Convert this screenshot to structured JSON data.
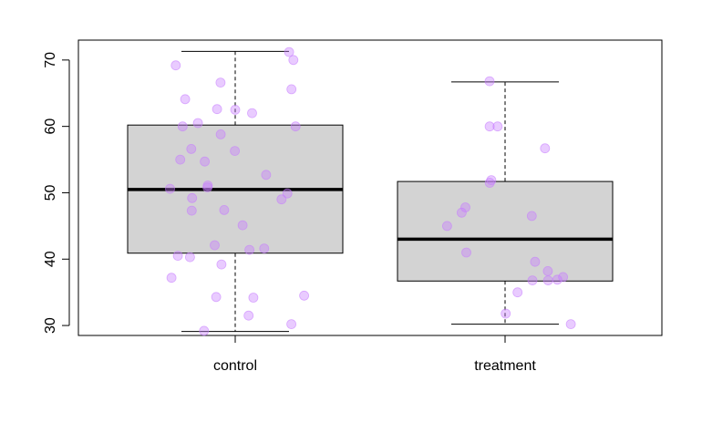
{
  "chart_data": {
    "type": "boxplot",
    "categories": [
      "control",
      "treatment"
    ],
    "y_ticks": [
      30,
      40,
      50,
      60,
      70
    ],
    "y_tick_labels": [
      "30",
      "40",
      "50",
      "60",
      "70"
    ],
    "ylim": [
      28.5,
      73
    ],
    "grid": false,
    "legend": "none",
    "boxes": [
      {
        "name": "control",
        "whisker_low": 29.1,
        "q1": 40.9,
        "median": 50.5,
        "q3": 60.2,
        "whisker_high": 71.3
      },
      {
        "name": "treatment",
        "whisker_low": 30.2,
        "q1": 36.7,
        "median": 43.0,
        "q3": 51.7,
        "whisker_high": 66.7
      }
    ],
    "points": [
      {
        "group": "control",
        "values": [
          71.2,
          70.0,
          69.2,
          66.6,
          65.6,
          64.1,
          62.6,
          62.5,
          62.0,
          60.5,
          60.0,
          60.0,
          58.8,
          56.6,
          56.3,
          54.7,
          55.0,
          52.7,
          51.1,
          50.8,
          50.6,
          49.9,
          49.2,
          49.0,
          47.4,
          47.3,
          45.1,
          42.1,
          41.6,
          41.4,
          40.5,
          40.3,
          39.2,
          37.2,
          34.5,
          34.3,
          34.2,
          31.5,
          30.2,
          29.2
        ]
      },
      {
        "group": "treatment",
        "values": [
          66.8,
          60.0,
          60.0,
          56.7,
          51.9,
          51.5,
          47.8,
          47.0,
          46.5,
          45.0,
          41.0,
          39.6,
          38.2,
          37.3,
          36.9,
          36.8,
          36.8,
          35.0,
          31.8,
          30.2
        ]
      }
    ],
    "colors": {
      "box_fill": "#d3d3d3",
      "box_stroke": "#000000",
      "point_fill": "#c77cff",
      "point_opacity": 0.4
    }
  }
}
